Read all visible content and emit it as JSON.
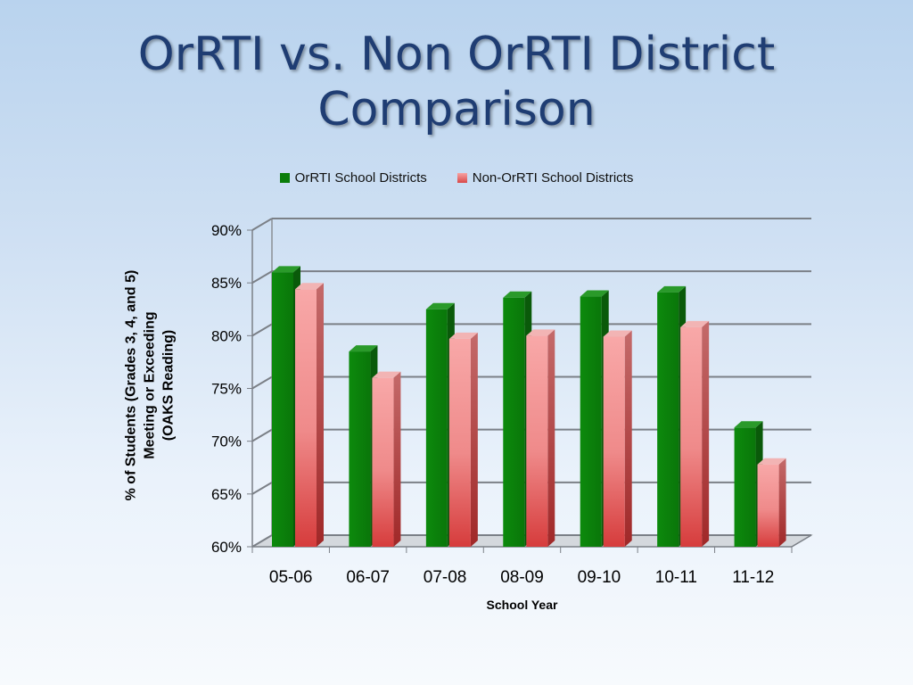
{
  "slide": {
    "title_line1": "OrRTI vs. Non OrRTI District",
    "title_line2": "Comparison"
  },
  "colors": {
    "orrti": "#0a7d0a",
    "non_orrti": "#e86a6a",
    "title": "#1f3d73"
  },
  "chart_data": {
    "type": "bar",
    "title": "",
    "xlabel": "School Year",
    "ylabel_lines": [
      "% of Students (Grades 3, 4, and 5)",
      "Meeting or Exceeding",
      "(OAKS Reading)"
    ],
    "categories": [
      "05-06",
      "06-07",
      "07-08",
      "08-09",
      "09-10",
      "10-11",
      "11-12"
    ],
    "series": [
      {
        "name": "OrRTI School Districts",
        "values": [
          86.0,
          78.5,
          82.5,
          83.6,
          83.7,
          84.1,
          71.3
        ]
      },
      {
        "name": "Non-OrRTI School Districts",
        "values": [
          84.4,
          76.0,
          79.7,
          80.0,
          79.9,
          80.8,
          67.8
        ]
      }
    ],
    "ylim": [
      60,
      90
    ],
    "yticks": [
      "60%",
      "65%",
      "70%",
      "75%",
      "80%",
      "85%",
      "90%"
    ],
    "grid": true,
    "legend_position": "top",
    "style": "3d-clustered-column"
  }
}
